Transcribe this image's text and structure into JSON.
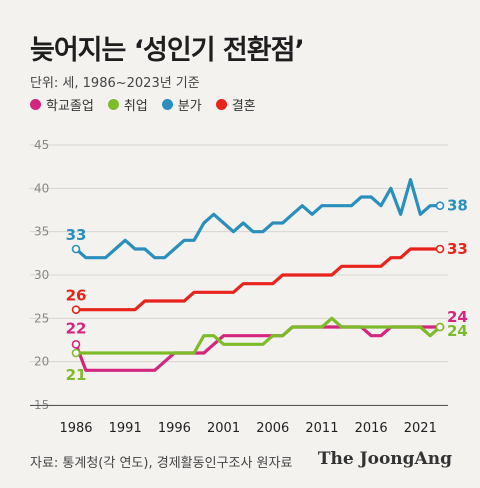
{
  "title": "늦어지는 ‘성인기 전환점’",
  "unit": "단위: 세, 1986~2023년 기준",
  "source": "자료: 통계청(각 연도), 경제활동인구조사 원자료",
  "brand": "The JoongAng",
  "legend": [
    {
      "label": "학교졸업",
      "color": "#d4267e"
    },
    {
      "label": "취업",
      "color": "#7dbb2a"
    },
    {
      "label": "분가",
      "color": "#2a8fbd"
    },
    {
      "label": "결혼",
      "color": "#e8231c"
    }
  ],
  "chart_data": {
    "type": "line",
    "x": [
      1986,
      1987,
      1988,
      1989,
      1990,
      1991,
      1992,
      1993,
      1994,
      1995,
      1996,
      1997,
      1998,
      1999,
      2000,
      2001,
      2002,
      2003,
      2004,
      2005,
      2006,
      2007,
      2008,
      2009,
      2010,
      2011,
      2012,
      2013,
      2014,
      2015,
      2016,
      2017,
      2018,
      2019,
      2020,
      2021,
      2022,
      2023
    ],
    "x_ticks": [
      1986,
      1991,
      1996,
      2001,
      2006,
      2011,
      2016,
      2021
    ],
    "y_ticks": [
      15,
      20,
      25,
      30,
      35,
      40,
      45
    ],
    "ylim": [
      15,
      45
    ],
    "grid": true,
    "series": [
      {
        "name": "학교졸업",
        "color": "#d4267e",
        "start_label": "22",
        "end_label": "24",
        "values": [
          22,
          19,
          19,
          19,
          19,
          19,
          19,
          19,
          19,
          20,
          21,
          21,
          21,
          21,
          22,
          23,
          23,
          23,
          23,
          23,
          23,
          23,
          24,
          24,
          24,
          24,
          24,
          24,
          24,
          24,
          23,
          23,
          24,
          24,
          24,
          24,
          24,
          24
        ]
      },
      {
        "name": "취업",
        "color": "#7dbb2a",
        "start_label": "21",
        "end_label": "24",
        "values": [
          21,
          21,
          21,
          21,
          21,
          21,
          21,
          21,
          21,
          21,
          21,
          21,
          21,
          23,
          23,
          22,
          22,
          22,
          22,
          22,
          23,
          23,
          24,
          24,
          24,
          24,
          25,
          24,
          24,
          24,
          24,
          24,
          24,
          24,
          24,
          24,
          23,
          24
        ]
      },
      {
        "name": "분가",
        "color": "#2a8fbd",
        "start_label": "33",
        "end_label": "38",
        "values": [
          33,
          32,
          32,
          32,
          33,
          34,
          33,
          33,
          32,
          32,
          33,
          34,
          34,
          36,
          37,
          36,
          35,
          36,
          35,
          35,
          36,
          36,
          37,
          38,
          37,
          38,
          38,
          38,
          38,
          39,
          39,
          38,
          40,
          37,
          41,
          37,
          38,
          38
        ]
      },
      {
        "name": "결혼",
        "color": "#e8231c",
        "start_label": "26",
        "end_label": "33",
        "values": [
          26,
          26,
          26,
          26,
          26,
          26,
          26,
          27,
          27,
          27,
          27,
          27,
          28,
          28,
          28,
          28,
          28,
          29,
          29,
          29,
          29,
          30,
          30,
          30,
          30,
          30,
          30,
          31,
          31,
          31,
          31,
          31,
          32,
          32,
          33,
          33,
          33,
          33
        ]
      }
    ]
  }
}
